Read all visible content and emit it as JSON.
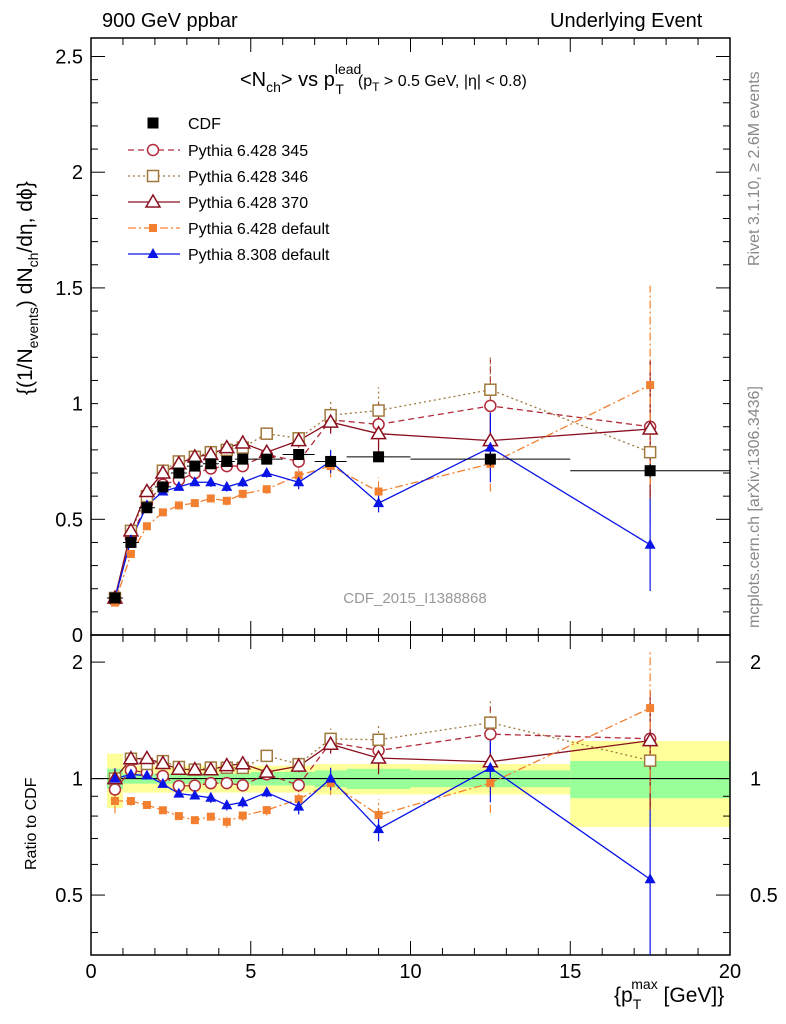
{
  "header": {
    "left": "900 GeV ppbar",
    "right": "Underlying Event"
  },
  "side": {
    "rivet": "Rivet 3.1.10, ≥ 2.6M events",
    "mcplots": "mcplots.cern.ch [arXiv:1306.3436]"
  },
  "chart_data": {
    "type": "scatter",
    "title_parts": {
      "open": "<N",
      "ch": "ch",
      "vs": "> vs p",
      "sup": "lead",
      "sub": "T",
      "cut1": "(p",
      "cut1sub": "T",
      "cut2": " > 0.5 GeV, |η| < 0.8)"
    },
    "ylabel_parts": [
      "{(1/N",
      "events",
      ") dN",
      "ch",
      "/dη, dϕ}"
    ],
    "ratio_ylabel": "Ratio to CDF",
    "xlabel_parts": [
      "{p",
      "T",
      "max",
      " [GeV]}"
    ],
    "watermark": "CDF_2015_I1388868",
    "xlim": [
      0,
      20
    ],
    "ylim_main": [
      0,
      2.58
    ],
    "ylim_ratio": [
      0.35,
      2.35
    ],
    "x_ticks": [
      "0",
      "5",
      "10",
      "15",
      "20"
    ],
    "y_ticks_main": [
      "0",
      "0.5",
      "1",
      "1.5",
      "2",
      "2.5"
    ],
    "y_ticks_ratio": [
      "0.5",
      "1",
      "2"
    ],
    "data": {
      "name": "CDF",
      "x": [
        0.75,
        1.25,
        1.75,
        2.25,
        2.75,
        3.25,
        3.75,
        4.25,
        4.75,
        5.5,
        6.5,
        7.5,
        9.0,
        12.5,
        17.5
      ],
      "xerr": [
        [
          0.5,
          1.0
        ],
        [
          1.0,
          1.5
        ],
        [
          1.5,
          2.0
        ],
        [
          2.0,
          2.5
        ],
        [
          2.5,
          3.0
        ],
        [
          3.0,
          3.5
        ],
        [
          3.5,
          4.0
        ],
        [
          4.0,
          4.5
        ],
        [
          4.5,
          5.0
        ],
        [
          5.0,
          6.0
        ],
        [
          6.0,
          7.0
        ],
        [
          7.0,
          8.0
        ],
        [
          8.0,
          10.0
        ],
        [
          10.0,
          15.0
        ],
        [
          15.0,
          20.0
        ]
      ],
      "y": [
        0.16,
        0.4,
        0.55,
        0.64,
        0.7,
        0.73,
        0.74,
        0.75,
        0.76,
        0.76,
        0.78,
        0.75,
        0.77,
        0.76,
        0.71
      ],
      "yerr": [
        0.01,
        0.01,
        0.01,
        0.01,
        0.01,
        0.01,
        0.01,
        0.01,
        0.01,
        0.01,
        0.01,
        0.01,
        0.02,
        0.03,
        0.03
      ]
    },
    "band_stat_rel": [
      0.06,
      0.03,
      0.03,
      0.03,
      0.03,
      0.03,
      0.03,
      0.03,
      0.03,
      0.04,
      0.04,
      0.05,
      0.06,
      0.05,
      0.11
    ],
    "band_total_rel": [
      0.16,
      0.08,
      0.08,
      0.08,
      0.08,
      0.08,
      0.08,
      0.08,
      0.08,
      0.08,
      0.08,
      0.09,
      0.09,
      0.09,
      0.25
    ],
    "series": [
      {
        "name": "Pythia 6.428 345",
        "color": "#b22a3a",
        "marker": "circle-open",
        "dash": "6,4",
        "y": [
          0.15,
          0.42,
          0.57,
          0.65,
          0.67,
          0.7,
          0.72,
          0.73,
          0.73,
          0.78,
          0.75,
          0.93,
          0.91,
          0.99,
          0.9
        ],
        "yerr": [
          0.01,
          0.01,
          0.01,
          0.01,
          0.01,
          0.01,
          0.01,
          0.02,
          0.02,
          0.02,
          0.03,
          0.05,
          0.1,
          0.2,
          0.3
        ]
      },
      {
        "name": "Pythia 6.428 346",
        "color": "#a0783c",
        "marker": "square-open",
        "dash": "2,3",
        "y": [
          0.16,
          0.45,
          0.6,
          0.71,
          0.75,
          0.77,
          0.79,
          0.8,
          0.81,
          0.87,
          0.85,
          0.95,
          0.97,
          1.06,
          0.79
        ],
        "yerr": [
          0.01,
          0.01,
          0.01,
          0.01,
          0.01,
          0.01,
          0.02,
          0.02,
          0.02,
          0.02,
          0.03,
          0.06,
          0.1,
          0.15,
          0.3
        ]
      },
      {
        "name": "Pythia 6.428 370",
        "color": "#8a1020",
        "marker": "triangle-open",
        "dash": "",
        "y": [
          0.16,
          0.45,
          0.62,
          0.7,
          0.74,
          0.77,
          0.78,
          0.81,
          0.83,
          0.79,
          0.84,
          0.92,
          0.87,
          0.84,
          0.89
        ],
        "yerr": [
          0.01,
          0.01,
          0.01,
          0.01,
          0.01,
          0.01,
          0.02,
          0.02,
          0.02,
          0.02,
          0.03,
          0.05,
          0.08,
          0.12,
          0.3
        ]
      },
      {
        "name": "Pythia 6.428 default",
        "color": "#f28030",
        "marker": "square-filled",
        "dash": "8,3,2,3",
        "y": [
          0.14,
          0.35,
          0.47,
          0.53,
          0.56,
          0.57,
          0.59,
          0.58,
          0.61,
          0.63,
          0.69,
          0.73,
          0.62,
          0.74,
          1.08
        ],
        "yerr": [
          0.01,
          0.01,
          0.01,
          0.01,
          0.01,
          0.01,
          0.01,
          0.02,
          0.02,
          0.02,
          0.03,
          0.05,
          0.06,
          0.12,
          0.43
        ]
      },
      {
        "name": "Pythia 8.308 default",
        "color": "#0a14e6",
        "marker": "triangle-filled",
        "dash": "",
        "y": [
          0.16,
          0.41,
          0.56,
          0.62,
          0.64,
          0.66,
          0.66,
          0.64,
          0.66,
          0.7,
          0.66,
          0.75,
          0.57,
          0.81,
          0.39
        ],
        "yerr": [
          0.01,
          0.01,
          0.01,
          0.01,
          0.01,
          0.01,
          0.02,
          0.02,
          0.02,
          0.02,
          0.03,
          0.05,
          0.04,
          0.15,
          0.2
        ]
      }
    ]
  }
}
